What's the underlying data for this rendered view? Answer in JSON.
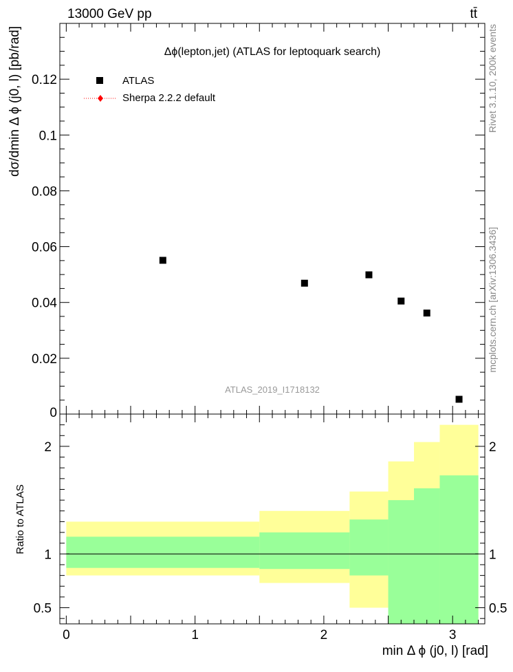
{
  "header": {
    "left": "13000 GeV pp",
    "right": "tt̄"
  },
  "side_labels": {
    "rivet": "Rivet 3.1.10,  200k events",
    "mcplots": "mcplots.cern.ch [arXiv:1306.3436]"
  },
  "chart_data": [
    {
      "type": "scatter",
      "title": "Δϕ(lepton,jet) (ATLAS for leptoquark search)",
      "ylabel": "dσ/dmin Δ ϕ (j0, l) [pb/rad]",
      "xlim": [
        -0.05,
        3.25
      ],
      "ylim": [
        0,
        0.14
      ],
      "yticks": [
        {
          "v": 0.02,
          "label": "0.02"
        },
        {
          "v": 0.04,
          "label": "0.04"
        },
        {
          "v": 0.06,
          "label": "0.06"
        },
        {
          "v": 0.08,
          "label": "0.08"
        },
        {
          "v": 0.1,
          "label": "0.1"
        },
        {
          "v": 0.12,
          "label": "0.12"
        },
        {
          "v": 0,
          "label": "0"
        }
      ],
      "legend": [
        {
          "name": "ATLAS",
          "marker": "square",
          "color": "#000000"
        },
        {
          "name": "Sherpa 2.2.2 default",
          "marker": "diamond",
          "color": "#ff0000"
        }
      ],
      "series": [
        {
          "name": "ATLAS",
          "x": [
            0.75,
            1.85,
            2.35,
            2.6,
            2.8,
            3.05
          ],
          "y": [
            0.0551,
            0.0469,
            0.0499,
            0.0405,
            0.0362,
            0.0053
          ]
        }
      ],
      "watermark": "ATLAS_2019_I1718132"
    },
    {
      "type": "area",
      "ylabel": "Ratio to ATLAS",
      "xlabel": "min Δ ϕ (j0, l) [rad]",
      "xlim": [
        -0.05,
        3.25
      ],
      "ylim": [
        0.35,
        2.3
      ],
      "xticks": [
        {
          "v": 0,
          "label": "0"
        },
        {
          "v": 1,
          "label": "1"
        },
        {
          "v": 2,
          "label": "2"
        },
        {
          "v": 3,
          "label": "3"
        }
      ],
      "yticks": [
        {
          "v": 0.5,
          "label": "0.5"
        },
        {
          "v": 1,
          "label": "1"
        },
        {
          "v": 2,
          "label": "2"
        }
      ],
      "bands": [
        {
          "x0": 0.0,
          "x1": 1.5,
          "green": [
            0.87,
            1.16
          ],
          "yellow": [
            0.8,
            1.3
          ]
        },
        {
          "x0": 1.5,
          "x1": 2.2,
          "green": [
            0.86,
            1.2
          ],
          "yellow": [
            0.73,
            1.4
          ]
        },
        {
          "x0": 2.2,
          "x1": 2.5,
          "green": [
            0.8,
            1.32
          ],
          "yellow": [
            0.5,
            1.58
          ]
        },
        {
          "x0": 2.5,
          "x1": 2.7,
          "green": [
            0.35,
            1.5
          ],
          "yellow": [
            0.35,
            1.86
          ]
        },
        {
          "x0": 2.7,
          "x1": 2.9,
          "green": [
            0.35,
            1.61
          ],
          "yellow": [
            0.35,
            2.04
          ]
        },
        {
          "x0": 2.9,
          "x1": 3.2,
          "green": [
            0.35,
            1.73
          ],
          "yellow": [
            0.35,
            2.2
          ]
        }
      ],
      "colors": {
        "green": "#99ff99",
        "yellow": "#ffff99"
      }
    }
  ]
}
